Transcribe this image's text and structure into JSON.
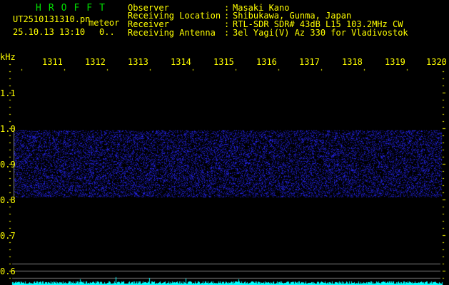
{
  "app": {
    "title": "HROFFT"
  },
  "file": {
    "name": "UT2510131310.pn",
    "tag": "meteor",
    "datetime": "25.10.13 13:10",
    "count": "0.."
  },
  "station": {
    "labels": [
      "Observer",
      "Receiving Location",
      "Receiver",
      "Receiving Antenna"
    ],
    "values": [
      "Masaki Kano",
      "Shibukawa, Gunma, Japan",
      "RTL-SDR SDR# 43dB L15 103.2MHz CW",
      "3el Yagi(V) Az 330 for Vladivostok"
    ]
  },
  "axes": {
    "y_unit": "kHz",
    "y_labels": [
      "1.1",
      "1.0",
      "0.9",
      "0.8",
      "0.7",
      "0.6"
    ],
    "time_labels": [
      "1311",
      "1312",
      "1313",
      "1314",
      "1315",
      "1316",
      "1317",
      "1318",
      "1319",
      "1320"
    ]
  },
  "colors": {
    "background": "#000000",
    "text": "#ffff00",
    "title": "#00e000",
    "noise": "#2020ff",
    "level": "#00ffff",
    "guide": "#808080"
  }
}
